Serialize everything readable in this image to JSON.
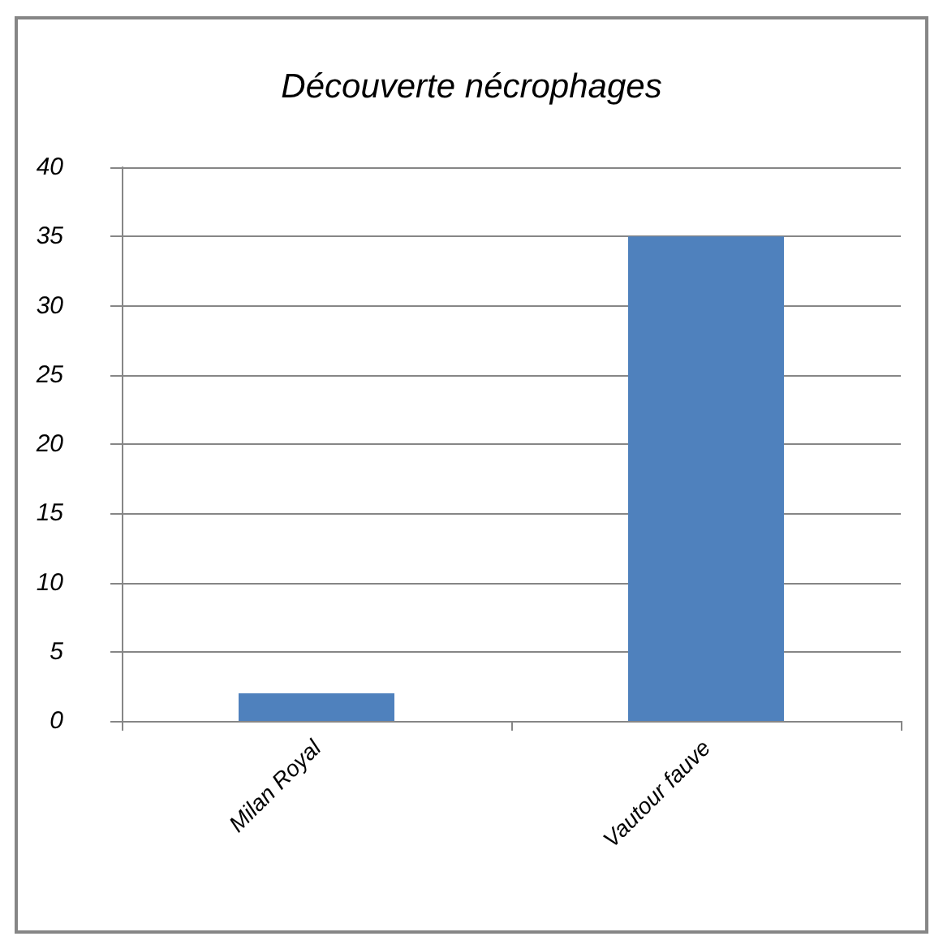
{
  "chart_data": {
    "type": "bar",
    "title": "Découverte nécrophages",
    "categories": [
      "Milan Royal",
      "Vautour fauve"
    ],
    "values": [
      2,
      35
    ],
    "color": "#4f81bd",
    "ylim": [
      0,
      40
    ],
    "yticks": [
      0,
      5,
      10,
      15,
      20,
      25,
      30,
      35,
      40
    ],
    "grid": "y"
  }
}
